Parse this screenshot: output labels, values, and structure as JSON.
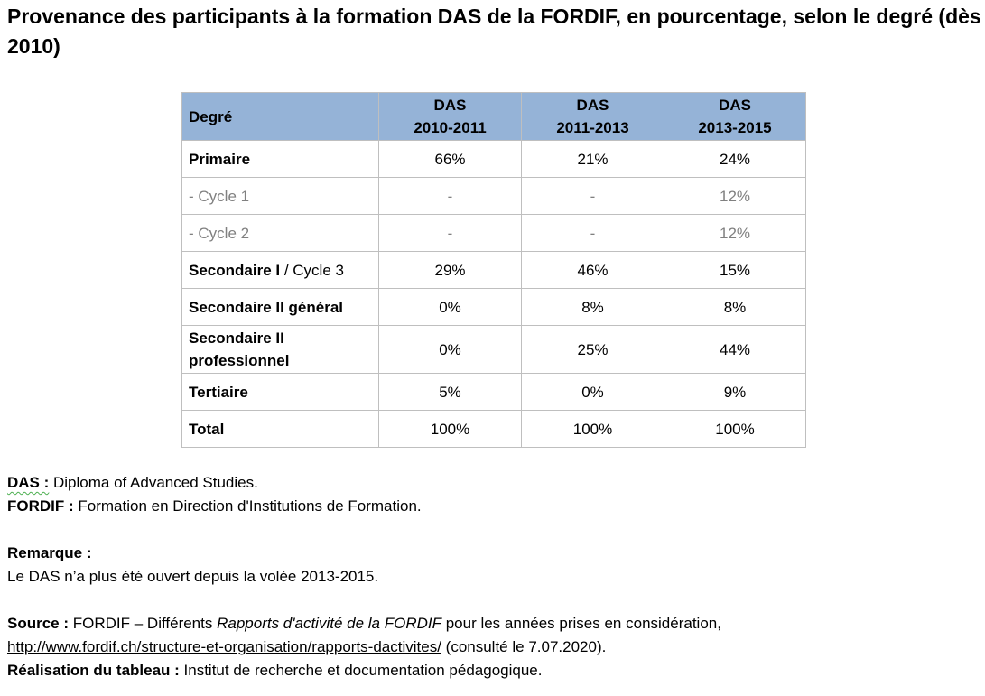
{
  "title": "Provenance des participants à la formation DAS de la FORDIF, en pourcentage, selon le degré (dès 2010)",
  "table": {
    "header": {
      "degree": "Degré",
      "col1_l1": "DAS",
      "col1_l2": "2010-2011",
      "col2_l1": "DAS",
      "col2_l2": "2011-2013",
      "col3_l1": "DAS",
      "col3_l2": "2013-2015"
    },
    "rows": [
      {
        "label": "Primaire",
        "v1": "66%",
        "v2": "21%",
        "v3": "24%"
      },
      {
        "label": "- Cycle 1",
        "v1": "-",
        "v2": "-",
        "v3": "12%"
      },
      {
        "label": "- Cycle 2",
        "v1": "-",
        "v2": "-",
        "v3": "12%"
      },
      {
        "label_bold": "Secondaire I",
        "label_rest": " / Cycle 3",
        "v1": "29%",
        "v2": "46%",
        "v3": "15%"
      },
      {
        "label": "Secondaire II général",
        "v1": "0%",
        "v2": "8%",
        "v3": "8%"
      },
      {
        "label_l1": "Secondaire II",
        "label_l2": "professionnel",
        "v1": "0%",
        "v2": "25%",
        "v3": "44%"
      },
      {
        "label": "Tertiaire",
        "v1": "5%",
        "v2": "0%",
        "v3": "9%"
      },
      {
        "label": "Total",
        "v1": "100%",
        "v2": "100%",
        "v3": "100%"
      }
    ]
  },
  "notes": {
    "das_label": "DAS :",
    "das_text": " Diploma of Advanced Studies.",
    "fordif_label": "FORDIF :",
    "fordif_text": " Formation en Direction d'Institutions de Formation.",
    "remark_label": "Remarque :",
    "remark_text": "Le DAS n’a plus été ouvert depuis la volée 2013-2015.",
    "source_label": "Source :",
    "source_text1": " FORDIF – Différents ",
    "source_italic": "Rapports d'activité de la FORDIF",
    "source_text2": " pour les années prises en considération,",
    "source_link": "http://www.fordif.ch/structure-et-organisation/rapports-dactivites/",
    "source_text3": " (consulté le 7.07.2020).",
    "realisation_label": "Réalisation du tableau :",
    "realisation_text": " Institut de recherche et documentation pédagogique."
  }
}
